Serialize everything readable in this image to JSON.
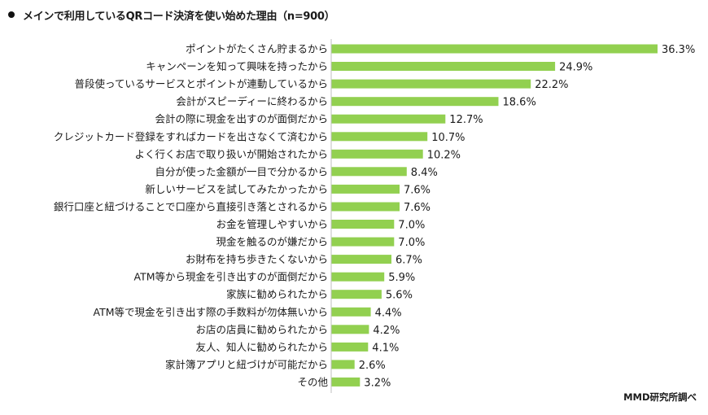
{
  "title": "メインで利用しているQRコード決済を使い始めた理由（n=900）",
  "source": "MMD研究所調べ",
  "colors": {
    "bar": "#92D050",
    "axis": "#bfbfbf"
  },
  "chart_data": {
    "type": "bar",
    "orientation": "horizontal",
    "value_suffix": "%",
    "xlim": [
      0,
      36.3
    ],
    "categories": [
      "ポイントがたくさん貯まるから",
      "キャンペーンを知って興味を持ったから",
      "普段使っているサービスとポイントが連動しているから",
      "会計がスピーディーに終わるから",
      "会計の際に現金を出すのが面倒だから",
      "クレジットカード登録をすればカードを出さなくて済むから",
      "よく行くお店で取り扱いが開始されたから",
      "自分が使った金額が一目で分かるから",
      "新しいサービスを試してみたかったから",
      "銀行口座と紐づけることで口座から直接引き落とされるから",
      "お金を管理しやすいから",
      "現金を触るのが嫌だから",
      "お財布を持ち歩きたくないから",
      "ATM等から現金を引き出すのが面倒だから",
      "家族に勧められたから",
      "ATM等で現金を引き出す際の手数料が勿体無いから",
      "お店の店員に勧められたから",
      "友人、知人に勧められたから",
      "家計簿アプリと紐づけが可能だから",
      "その他"
    ],
    "values": [
      36.3,
      24.9,
      22.2,
      18.6,
      12.7,
      10.7,
      10.2,
      8.4,
      7.6,
      7.6,
      7.0,
      7.0,
      6.7,
      5.9,
      5.6,
      4.4,
      4.2,
      4.1,
      2.6,
      3.2
    ],
    "value_labels": [
      "36.3%",
      "24.9%",
      "22.2%",
      "18.6%",
      "12.7%",
      "10.7%",
      "10.2%",
      "8.4%",
      "7.6%",
      "7.6%",
      "7.0%",
      "7.0%",
      "6.7%",
      "5.9%",
      "5.6%",
      "4.4%",
      "4.2%",
      "4.1%",
      "2.6%",
      "3.2%"
    ]
  }
}
